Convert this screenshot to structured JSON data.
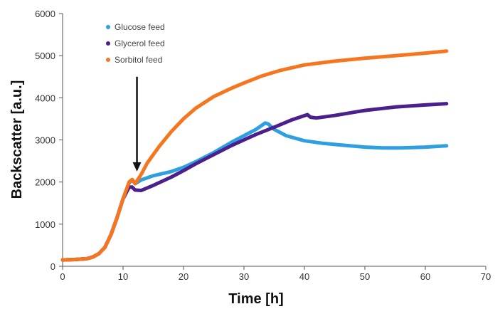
{
  "chart_data": {
    "type": "line",
    "xlabel": "Time [h]",
    "ylabel": "Backscatter  [a.u.]",
    "xlim": [
      0,
      70
    ],
    "ylim": [
      0,
      6000
    ],
    "x_ticks": [
      "0",
      "10",
      "20",
      "30",
      "40",
      "50",
      "60",
      "70"
    ],
    "y_ticks": [
      "0",
      "1000",
      "2000",
      "3000",
      "4000",
      "5000",
      "6000"
    ],
    "grid": false,
    "legend_position": "top-left",
    "annotation": {
      "type": "arrow",
      "x": 12.3,
      "y_from": 4500,
      "y_to": 2250
    },
    "series": [
      {
        "name": "Glucose feed",
        "color": "#2e9fe0",
        "x": [
          0,
          2,
          4,
          5,
          6,
          7,
          8,
          9,
          10,
          11,
          11.5,
          12,
          13,
          15,
          18,
          20,
          22,
          25,
          28,
          30,
          32,
          33.5,
          34,
          35,
          37,
          40,
          43,
          46,
          50,
          53,
          56,
          60,
          63.5
        ],
        "y": [
          150,
          160,
          180,
          220,
          300,
          450,
          750,
          1150,
          1600,
          1980,
          2050,
          1960,
          2050,
          2150,
          2250,
          2350,
          2480,
          2700,
          2950,
          3100,
          3250,
          3400,
          3380,
          3250,
          3100,
          2980,
          2920,
          2880,
          2830,
          2810,
          2810,
          2830,
          2860
        ]
      },
      {
        "name": "Glycerol feed",
        "color": "#4b1f8c",
        "x": [
          0,
          2,
          4,
          5,
          6,
          7,
          8,
          9,
          10,
          11,
          11.5,
          12,
          13,
          15,
          18,
          20,
          22,
          25,
          28,
          30,
          32,
          35,
          38,
          40.5,
          41,
          42,
          45,
          50,
          55,
          60,
          63.5
        ],
        "y": [
          150,
          160,
          180,
          220,
          300,
          450,
          750,
          1150,
          1600,
          1880,
          1880,
          1810,
          1800,
          1920,
          2120,
          2270,
          2430,
          2650,
          2870,
          3000,
          3130,
          3300,
          3480,
          3600,
          3540,
          3520,
          3580,
          3700,
          3780,
          3830,
          3860
        ]
      },
      {
        "name": "Sorbitol feed",
        "color": "#f5761e",
        "x": [
          0,
          2,
          4,
          5,
          6,
          7,
          8,
          9,
          10,
          11,
          11.5,
          12,
          13,
          14,
          16,
          18,
          20,
          22,
          25,
          28,
          30,
          33,
          36,
          40,
          45,
          50,
          55,
          60,
          63.5
        ],
        "y": [
          150,
          160,
          180,
          220,
          300,
          450,
          750,
          1150,
          1600,
          2000,
          2060,
          1960,
          2180,
          2450,
          2850,
          3200,
          3500,
          3750,
          4030,
          4230,
          4350,
          4520,
          4650,
          4780,
          4870,
          4940,
          5000,
          5060,
          5110
        ]
      }
    ]
  }
}
